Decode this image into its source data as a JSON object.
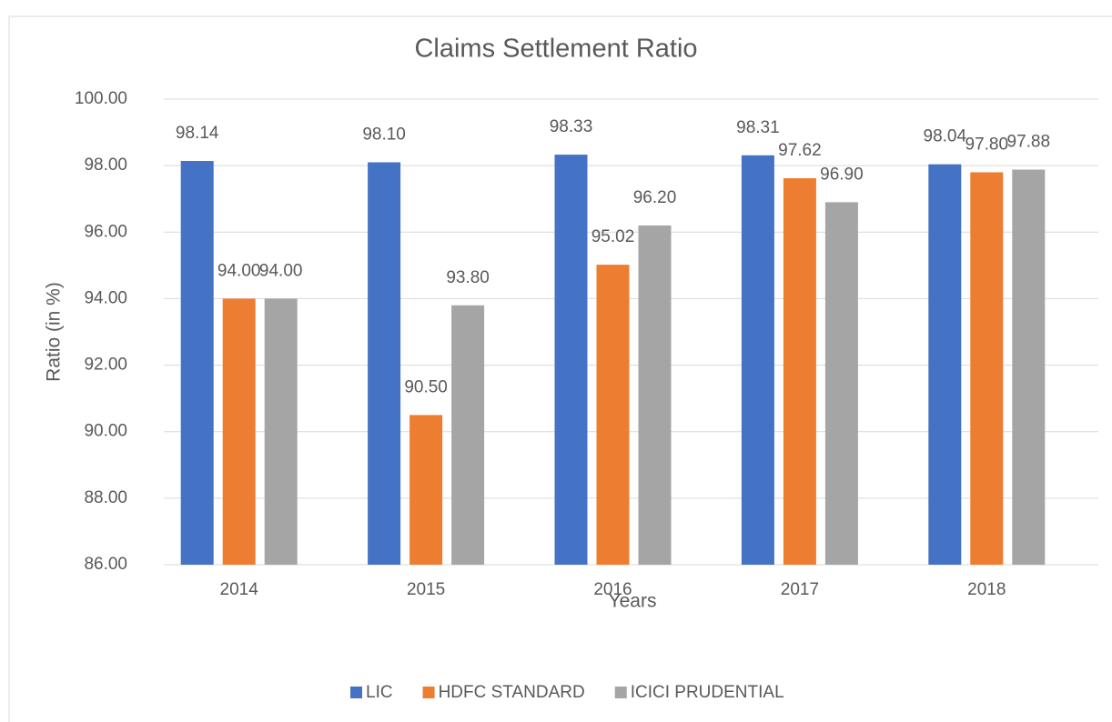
{
  "chart_data": {
    "type": "bar",
    "title": "Claims Settlement Ratio",
    "x_label": "Years",
    "y_label": "Ratio (in %)",
    "categories": [
      "2014",
      "2015",
      "2016",
      "2017",
      "2018"
    ],
    "series": [
      {
        "name": "LIC",
        "color": "#4472c4",
        "values": [
          98.14,
          98.1,
          98.33,
          98.31,
          98.04
        ],
        "value_labels": [
          "98.14",
          "98.10",
          "98.33",
          "98.31",
          "98.04"
        ]
      },
      {
        "name": "HDFC STANDARD",
        "color": "#ed7d31",
        "values": [
          94,
          90.5,
          95.02,
          97.62,
          97.8
        ],
        "value_labels": [
          "94.00",
          "90.50",
          "95.02",
          "97.62",
          "97.80"
        ]
      },
      {
        "name": "ICICI PRUDENTIAL",
        "color": "#a5a5a5",
        "values": [
          94,
          93.8,
          96.2,
          96.9,
          97.88
        ],
        "value_labels": [
          "94.00",
          "93.80",
          "96.20",
          "96.90",
          "97.88"
        ]
      }
    ],
    "ylim": [
      86,
      100
    ],
    "yticks": [
      {
        "value": 86,
        "label": "86.00"
      },
      {
        "value": 88,
        "label": "88.00"
      },
      {
        "value": 90,
        "label": "90.00"
      },
      {
        "value": 92,
        "label": "92.00"
      },
      {
        "value": 94,
        "label": "94.00"
      },
      {
        "value": 96,
        "label": "96.00"
      },
      {
        "value": 98,
        "label": "98.00"
      },
      {
        "value": 100,
        "label": "100.00"
      }
    ],
    "grid": true,
    "legend": "bottom"
  }
}
